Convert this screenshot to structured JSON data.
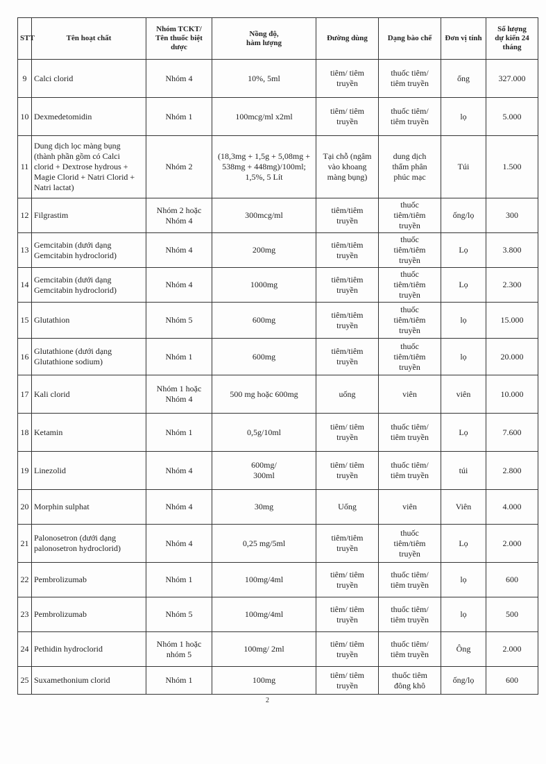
{
  "header": {
    "columns": [
      "STT",
      "Tên hoạt chất",
      "Nhóm TCKT/\nTên thuốc biệt\ndược",
      "Nồng độ,\nhàm lượng",
      "Đường dùng",
      "Dạng bào chế",
      "Đơn vị tính",
      "Số lượng\ndự kiến 24\ntháng"
    ]
  },
  "table": {
    "rows": [
      [
        "9",
        "Calci clorid",
        "Nhóm 4",
        "10%, 5ml",
        "tiêm/ tiêm\ntruyền",
        "thuốc tiêm/\ntiêm truyền",
        "ống",
        "327.000"
      ],
      [
        "10",
        "Dexmedetomidin",
        "Nhóm 1",
        "100mcg/ml x2ml",
        "tiêm/ tiêm\ntruyền",
        "thuốc tiêm/\ntiêm truyền",
        "lọ",
        "5.000"
      ],
      [
        "11",
        "Dung dịch lọc màng bụng\n(thành phần gồm có Calci\nclorid + Dextrose hydrous +\nMagie Clorid + Natri Clorid +\nNatri lactat)",
        "Nhóm 2",
        "(18,3mg + 1,5g + 5,08mg +\n538mg + 448mg)/100ml;\n1,5%, 5 Lít",
        "Tại chỗ (ngâm\nvào khoang\nmàng bụng)",
        "dung dịch\nthẩm phân\nphúc mạc",
        "Túi",
        "1.500"
      ],
      [
        "12",
        "Filgrastim",
        "Nhóm 2 hoặc\nNhóm 4",
        "300mcg/ml",
        "tiêm/tiêm\ntruyền",
        "thuốc\ntiêm/tiêm\ntruyền",
        "ống/lọ",
        "300"
      ],
      [
        "13",
        "Gemcitabin (dưới dạng\nGemcitabin hydroclorid)",
        "Nhóm 4",
        "200mg",
        "tiêm/tiêm\ntruyền",
        "thuốc\ntiêm/tiêm\ntruyền",
        "Lọ",
        "3.800"
      ],
      [
        "14",
        "Gemcitabin (dưới dạng\nGemcitabin hydroclorid)",
        "Nhóm 4",
        "1000mg",
        "tiêm/tiêm\ntruyền",
        "thuốc\ntiêm/tiêm\ntruyền",
        "Lọ",
        "2.300"
      ],
      [
        "15",
        "Glutathion",
        "Nhóm 5",
        "600mg",
        "tiêm/tiêm\ntruyền",
        "thuốc\ntiêm/tiêm\ntruyền",
        "lọ",
        "15.000"
      ],
      [
        "16",
        "Glutathione (dưới dạng\nGlutathione sodium)",
        "Nhóm 1",
        "600mg",
        "tiêm/tiêm\ntruyền",
        "thuốc\ntiêm/tiêm\ntruyền",
        "lọ",
        "20.000"
      ],
      [
        "17",
        "Kali clorid",
        "Nhóm 1 hoặc\nNhóm 4",
        "500 mg hoặc 600mg",
        "uống",
        "viên",
        "viên",
        "10.000"
      ],
      [
        "18",
        "Ketamin",
        "Nhóm 1",
        "0,5g/10ml",
        "tiêm/ tiêm\ntruyền",
        "thuốc tiêm/\ntiêm truyền",
        "Lọ",
        "7.600"
      ],
      [
        "19",
        "Linezolid",
        "Nhóm 4",
        "600mg/\n300ml",
        "tiêm/ tiêm\ntruyền",
        "thuốc tiêm/\ntiêm truyền",
        "túi",
        "2.800"
      ],
      [
        "20",
        "Morphin sulphat",
        "Nhóm 4",
        "30mg",
        "Uống",
        "viên",
        "Viên",
        "4.000"
      ],
      [
        "21",
        "Palonosetron (dưới dạng\npalonosetron hydroclorid)",
        "Nhóm 4",
        "0,25 mg/5ml",
        "tiêm/tiêm\ntruyền",
        "thuốc\ntiêm/tiêm\ntruyền",
        "Lọ",
        "2.000"
      ],
      [
        "22",
        "Pembrolizumab",
        "Nhóm 1",
        "100mg/4ml",
        "tiêm/ tiêm\ntruyền",
        "thuốc tiêm/\ntiêm truyền",
        "lọ",
        "600"
      ],
      [
        "23",
        "Pembrolizumab",
        "Nhóm 5",
        "100mg/4ml",
        "tiêm/ tiêm\ntruyền",
        "thuốc tiêm/\ntiêm truyền",
        "lọ",
        "500"
      ],
      [
        "24",
        "Pethidin hydroclorid",
        "Nhóm 1 hoặc\nnhóm 5",
        "100mg/ 2ml",
        "tiêm/ tiêm\ntruyền",
        "thuốc tiêm/\ntiêm truyền",
        "Ông",
        "2.000"
      ],
      [
        "25",
        "Suxamethonium clorid",
        "Nhóm 1",
        "100mg",
        "tiêm/ tiêm\ntruyền",
        "thuốc tiêm\nđông khô",
        "ống/lọ",
        "600"
      ]
    ]
  },
  "page_number": "2"
}
